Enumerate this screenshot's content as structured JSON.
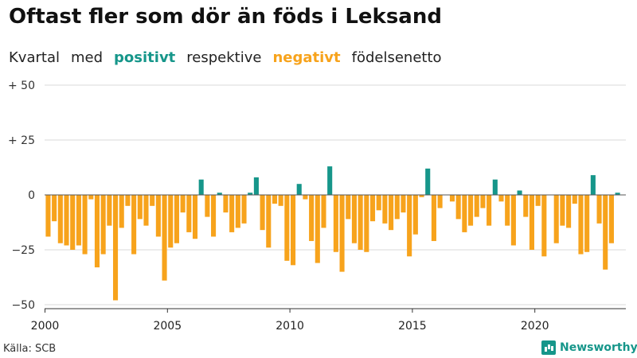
{
  "header": {
    "title": "Oftast fler som dör än föds i Leksand",
    "subtitle_prefix": "Kvartal",
    "subtitle_med": "med",
    "subtitle_positive": "positivt",
    "subtitle_middle": "respektive",
    "subtitle_negative": "negativt",
    "subtitle_suffix": "födelsenetto"
  },
  "footer": {
    "source": "Källa: SCB",
    "brand": "Newsworthy"
  },
  "chart_data": {
    "type": "bar",
    "title": "Oftast fler som dör än föds i Leksand",
    "subtitle": "Kvartal med positivt respektive negativt födelsenetto",
    "xlabel": "",
    "ylabel": "",
    "ylim": [
      -50,
      50
    ],
    "grid": true,
    "y_ticks": [
      {
        "value": 50,
        "label": "+ 50"
      },
      {
        "value": 25,
        "label": "+ 25"
      },
      {
        "value": 0,
        "label": "0"
      },
      {
        "value": -25,
        "label": "−25"
      },
      {
        "value": -50,
        "label": "−50"
      }
    ],
    "x_ticks": [
      {
        "year": 2000,
        "label": "2000"
      },
      {
        "year": 2005,
        "label": "2005"
      },
      {
        "year": 2010,
        "label": "2010"
      },
      {
        "year": 2015,
        "label": "2015"
      },
      {
        "year": 2020,
        "label": "2020"
      }
    ],
    "start_year": 2000,
    "start_quarter": 1,
    "positive_color": "#16968a",
    "negative_color": "#f7a31c",
    "values": [
      -19,
      -12,
      -22,
      -23,
      -25,
      -23,
      -27,
      -2,
      -33,
      -27,
      -14,
      -48,
      -15,
      -5,
      -27,
      -11,
      -14,
      -5,
      -19,
      -39,
      -24,
      -22,
      -8,
      -17,
      -20,
      7,
      -10,
      -19,
      1,
      -8,
      -17,
      -15,
      -13,
      1,
      8,
      -16,
      -24,
      -4,
      -5,
      -30,
      -32,
      5,
      -2,
      -21,
      -31,
      -15,
      13,
      -26,
      -35,
      -11,
      -22,
      -25,
      -26,
      -12,
      -7,
      -13,
      -16,
      -11,
      -8,
      -28,
      -18,
      -1,
      12,
      -21,
      -6,
      0,
      -3,
      -11,
      -17,
      -14,
      -10,
      -6,
      -14,
      7,
      -3,
      -14,
      -23,
      2,
      -10,
      -25,
      -5,
      -28,
      0,
      -22,
      -14,
      -15,
      -4,
      -27,
      -26,
      9,
      -13,
      -34,
      -22,
      1
    ]
  }
}
